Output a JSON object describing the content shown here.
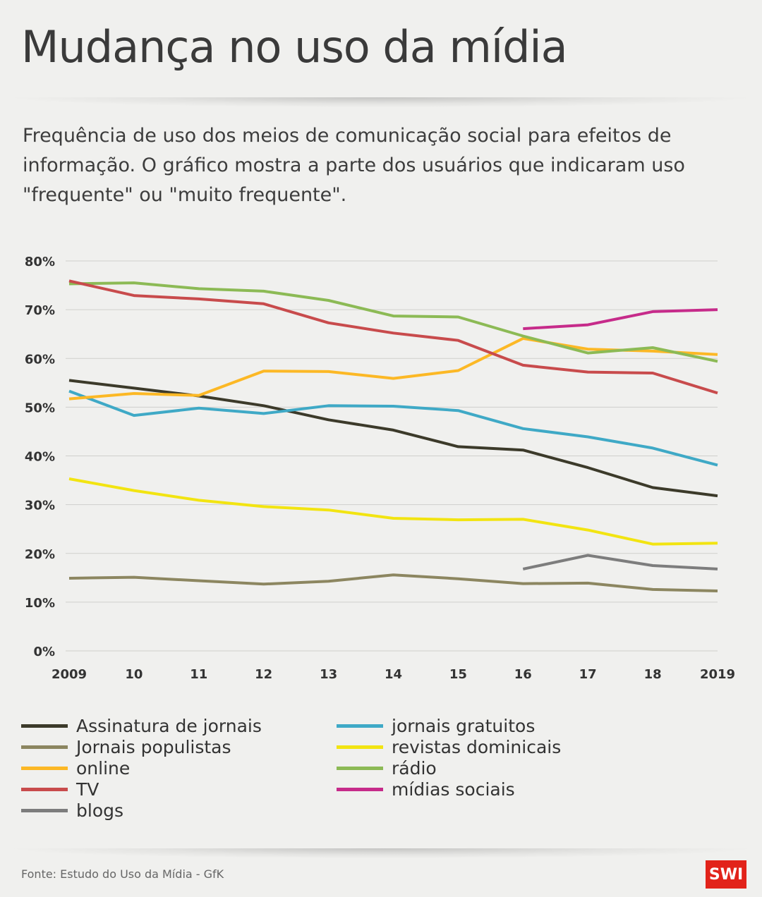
{
  "header": {
    "title": "Mudança no uso da mídia",
    "subtitle": "Frequência de uso dos meios de comunicação social para efeitos de informação. O gráfico mostra a parte dos usuários que indicaram uso \"frequente\" ou \"muito frequente\"."
  },
  "chart_data": {
    "type": "line",
    "title": "Mudança no uso da mídia",
    "xlabel": "",
    "ylabel": "",
    "ylim": [
      0,
      80
    ],
    "yticks": [
      0,
      10,
      20,
      30,
      40,
      50,
      60,
      70,
      80
    ],
    "ytick_labels": [
      "0%",
      "10%",
      "20%",
      "30%",
      "40%",
      "50%",
      "60%",
      "70%",
      "80%"
    ],
    "x": [
      2009,
      2010,
      2011,
      2012,
      2013,
      2014,
      2015,
      2016,
      2017,
      2018,
      2019
    ],
    "x_labels": [
      "2009",
      "10",
      "11",
      "12",
      "13",
      "14",
      "15",
      "16",
      "17",
      "18",
      "2019"
    ],
    "grid": true,
    "legend_position": "bottom",
    "series": [
      {
        "name": "Assinatura de jornais",
        "color": "#3c3a2a",
        "values": [
          55.5,
          53.9,
          52.3,
          50.3,
          47.4,
          45.3,
          41.9,
          41.2,
          37.6,
          33.5,
          31.8
        ]
      },
      {
        "name": "jornais gratuitos",
        "color": "#3fa9c6",
        "values": [
          53.3,
          48.3,
          49.8,
          48.7,
          50.3,
          50.2,
          49.3,
          45.6,
          43.9,
          41.6,
          38.1
        ]
      },
      {
        "name": "Jornais populistas",
        "color": "#8c8660",
        "values": [
          14.9,
          15.1,
          14.4,
          13.7,
          14.3,
          15.6,
          14.8,
          13.8,
          13.9,
          12.6,
          12.3
        ]
      },
      {
        "name": "revistas dominicais",
        "color": "#f2e411",
        "values": [
          35.3,
          32.9,
          30.9,
          29.6,
          28.9,
          27.2,
          26.9,
          27.0,
          24.8,
          21.9,
          22.1
        ]
      },
      {
        "name": "online",
        "color": "#fcb825",
        "values": [
          51.7,
          52.8,
          52.4,
          57.4,
          57.3,
          55.9,
          57.5,
          64.1,
          61.9,
          61.5,
          60.8
        ]
      },
      {
        "name": "rádio",
        "color": "#8cba55",
        "values": [
          75.3,
          75.5,
          74.3,
          73.8,
          71.9,
          68.7,
          68.5,
          64.6,
          61.1,
          62.2,
          59.4
        ]
      },
      {
        "name": "TV",
        "color": "#c84b4c",
        "values": [
          75.9,
          72.9,
          72.2,
          71.2,
          67.3,
          65.2,
          63.7,
          58.6,
          57.2,
          57.0,
          52.9
        ]
      },
      {
        "name": "mídias sociais",
        "color": "#c62b8a",
        "values": [
          null,
          null,
          null,
          null,
          null,
          null,
          null,
          66.1,
          66.9,
          69.6,
          70.0
        ]
      },
      {
        "name": "blogs",
        "color": "#7d7d7d",
        "values": [
          null,
          null,
          null,
          null,
          null,
          null,
          null,
          16.8,
          19.6,
          17.5,
          16.8
        ]
      }
    ]
  },
  "legend": {
    "items": [
      {
        "label": "Assinatura de jornais",
        "color": "#3c3a2a"
      },
      {
        "label": "jornais gratuitos",
        "color": "#3fa9c6"
      },
      {
        "label": "Jornais populistas",
        "color": "#8c8660"
      },
      {
        "label": "revistas dominicais",
        "color": "#f2e411"
      },
      {
        "label": "online",
        "color": "#fcb825"
      },
      {
        "label": "rádio",
        "color": "#8cba55"
      },
      {
        "label": "TV",
        "color": "#c84b4c"
      },
      {
        "label": "mídias sociais",
        "color": "#c62b8a"
      },
      {
        "label": "blogs",
        "color": "#7d7d7d"
      }
    ]
  },
  "footer": {
    "source": "Fonte: Estudo do Uso da Mídia - GfK",
    "logo_text": "SWI",
    "logo_color": "#e2231a"
  }
}
